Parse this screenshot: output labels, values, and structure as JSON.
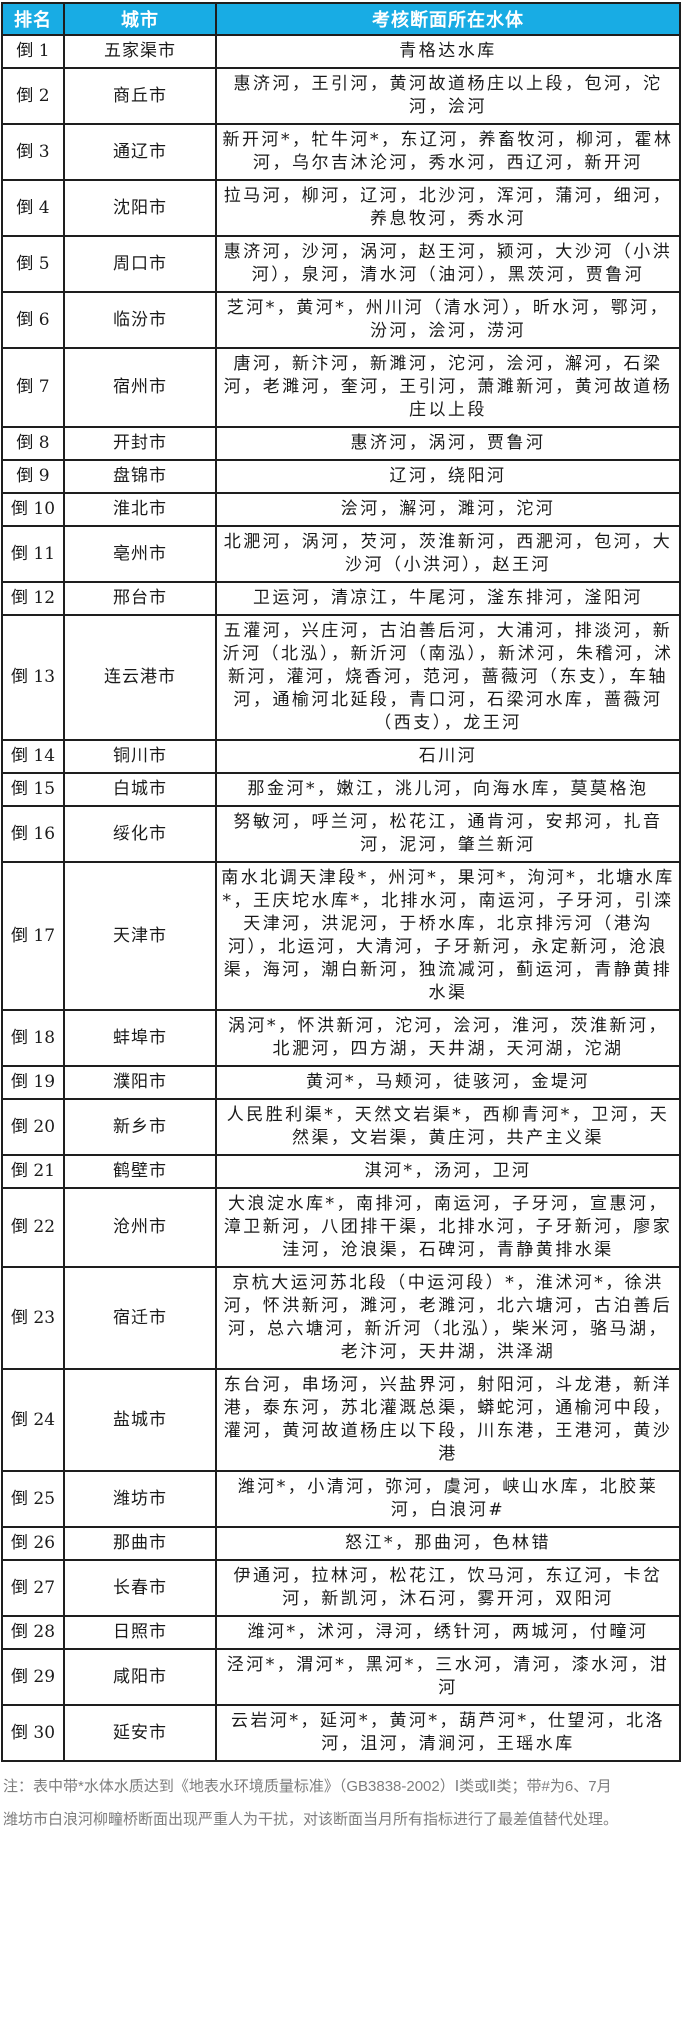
{
  "colors": {
    "header_bg": "#18ace4",
    "header_text": "#ffffff",
    "border": "#1e1e1e",
    "body_text": "#1a1a1a",
    "note_text": "#7d7d7d"
  },
  "table": {
    "headers": [
      "排名",
      "城市",
      "考核断面所在水体"
    ],
    "rows": [
      {
        "rank": "倒 1",
        "city": "五家渠市",
        "waters": "青格达水库"
      },
      {
        "rank": "倒 2",
        "city": "商丘市",
        "waters": "惠济河，王引河，黄河故道杨庄以上段，包河，沱河，浍河"
      },
      {
        "rank": "倒 3",
        "city": "通辽市",
        "waters": "新开河*，牤牛河*，东辽河，养畜牧河，柳河，霍林河，乌尔吉沐沦河，秀水河，西辽河，新开河"
      },
      {
        "rank": "倒 4",
        "city": "沈阳市",
        "waters": "拉马河，柳河，辽河，北沙河，浑河，蒲河，细河，养息牧河，秀水河"
      },
      {
        "rank": "倒 5",
        "city": "周口市",
        "waters": "惠济河，沙河，涡河，赵王河，颍河，大沙河（小洪河），泉河，清水河（油河），黑茨河，贾鲁河"
      },
      {
        "rank": "倒 6",
        "city": "临汾市",
        "waters": "芝河*，黄河*，州川河（清水河），昕水河，鄂河，汾河，浍河，涝河"
      },
      {
        "rank": "倒 7",
        "city": "宿州市",
        "waters": "唐河，新汴河，新濉河，沱河，浍河，澥河，石梁河，老濉河，奎河，王引河，萧濉新河，黄河故道杨庄以上段"
      },
      {
        "rank": "倒 8",
        "city": "开封市",
        "waters": "惠济河，涡河，贾鲁河"
      },
      {
        "rank": "倒 9",
        "city": "盘锦市",
        "waters": "辽河，绕阳河"
      },
      {
        "rank": "倒 10",
        "city": "淮北市",
        "waters": "浍河，澥河，濉河，沱河"
      },
      {
        "rank": "倒 11",
        "city": "亳州市",
        "waters": "北淝河，涡河，芡河，茨淮新河，西淝河，包河，大沙河（小洪河），赵王河"
      },
      {
        "rank": "倒 12",
        "city": "邢台市",
        "waters": "卫运河，清凉江，牛尾河，滏东排河，滏阳河"
      },
      {
        "rank": "倒 13",
        "city": "连云港市",
        "waters": "五灌河，兴庄河，古泊善后河，大浦河，排淡河，新沂河（北泓），新沂河（南泓），新沭河，朱稽河，沭新河，灌河，烧香河，范河，蔷薇河（东支），车轴河，通榆河北延段，青口河，石梁河水库，蔷薇河（西支），龙王河"
      },
      {
        "rank": "倒 14",
        "city": "铜川市",
        "waters": "石川河"
      },
      {
        "rank": "倒 15",
        "city": "白城市",
        "waters": "那金河*，嫩江，洮儿河，向海水库，莫莫格泡"
      },
      {
        "rank": "倒 16",
        "city": "绥化市",
        "waters": "努敏河，呼兰河，松花江，通肯河，安邦河，扎音河，泥河，肇兰新河"
      },
      {
        "rank": "倒 17",
        "city": "天津市",
        "waters": "南水北调天津段*，州河*，果河*，泃河*，北塘水库*，王庆坨水库*，北排水河，南运河，子牙河，引滦天津河，洪泥河，于桥水库，北京排污河（港沟河），北运河，大清河，子牙新河，永定新河，沧浪渠，海河，潮白新河，独流减河，蓟运河，青静黄排水渠"
      },
      {
        "rank": "倒 18",
        "city": "蚌埠市",
        "waters": "涡河*，怀洪新河，沱河，浍河，淮河，茨淮新河，北淝河，四方湖，天井湖，天河湖，沱湖"
      },
      {
        "rank": "倒 19",
        "city": "濮阳市",
        "waters": "黄河*，马颊河，徒骇河，金堤河"
      },
      {
        "rank": "倒 20",
        "city": "新乡市",
        "waters": "人民胜利渠*，天然文岩渠*，西柳青河*，卫河，天然渠，文岩渠，黄庄河，共产主义渠"
      },
      {
        "rank": "倒 21",
        "city": "鹤壁市",
        "waters": "淇河*，汤河，卫河"
      },
      {
        "rank": "倒 22",
        "city": "沧州市",
        "waters": "大浪淀水库*，南排河，南运河，子牙河，宣惠河，漳卫新河，八团排干渠，北排水河，子牙新河，廖家洼河，沧浪渠，石碑河，青静黄排水渠"
      },
      {
        "rank": "倒 23",
        "city": "宿迁市",
        "waters": "京杭大运河苏北段（中运河段）*，淮沭河*，徐洪河，怀洪新河，濉河，老濉河，北六塘河，古泊善后河，总六塘河，新沂河（北泓），柴米河，骆马湖，老汴河，天井湖，洪泽湖"
      },
      {
        "rank": "倒 24",
        "city": "盐城市",
        "waters": "东台河，串场河，兴盐界河，射阳河，斗龙港，新洋港，泰东河，苏北灌溉总渠，蟒蛇河，通榆河中段，灌河，黄河故道杨庄以下段，川东港，王港河，黄沙港"
      },
      {
        "rank": "倒 25",
        "city": "潍坊市",
        "waters": "潍河*，小清河，弥河，虞河，峡山水库，北胶莱河，白浪河#"
      },
      {
        "rank": "倒 26",
        "city": "那曲市",
        "waters": "怒江*，那曲河，色林错"
      },
      {
        "rank": "倒 27",
        "city": "长春市",
        "waters": "伊通河，拉林河，松花江，饮马河，东辽河，卡岔河，新凯河，沐石河，雾开河，双阳河"
      },
      {
        "rank": "倒 28",
        "city": "日照市",
        "waters": "潍河*，沭河，浔河，绣针河，两城河，付疃河"
      },
      {
        "rank": "倒 29",
        "city": "咸阳市",
        "waters": "泾河*，渭河*，黑河*，三水河，清河，漆水河，泔河"
      },
      {
        "rank": "倒 30",
        "city": "延安市",
        "waters": "云岩河*，延河*，黄河*，葫芦河*，仕望河，北洛河，沮河，清涧河，王瑶水库"
      }
    ]
  },
  "note": {
    "lines": [
      "注：表中带*水体水质达到《地表水环境质量标准》（GB3838-2002）Ⅰ类或Ⅱ类；带#为6、7月",
      "潍坊市白浪河柳疃桥断面出现严重人为干扰，对该断面当月所有指标进行了最差值替代处理。"
    ]
  }
}
